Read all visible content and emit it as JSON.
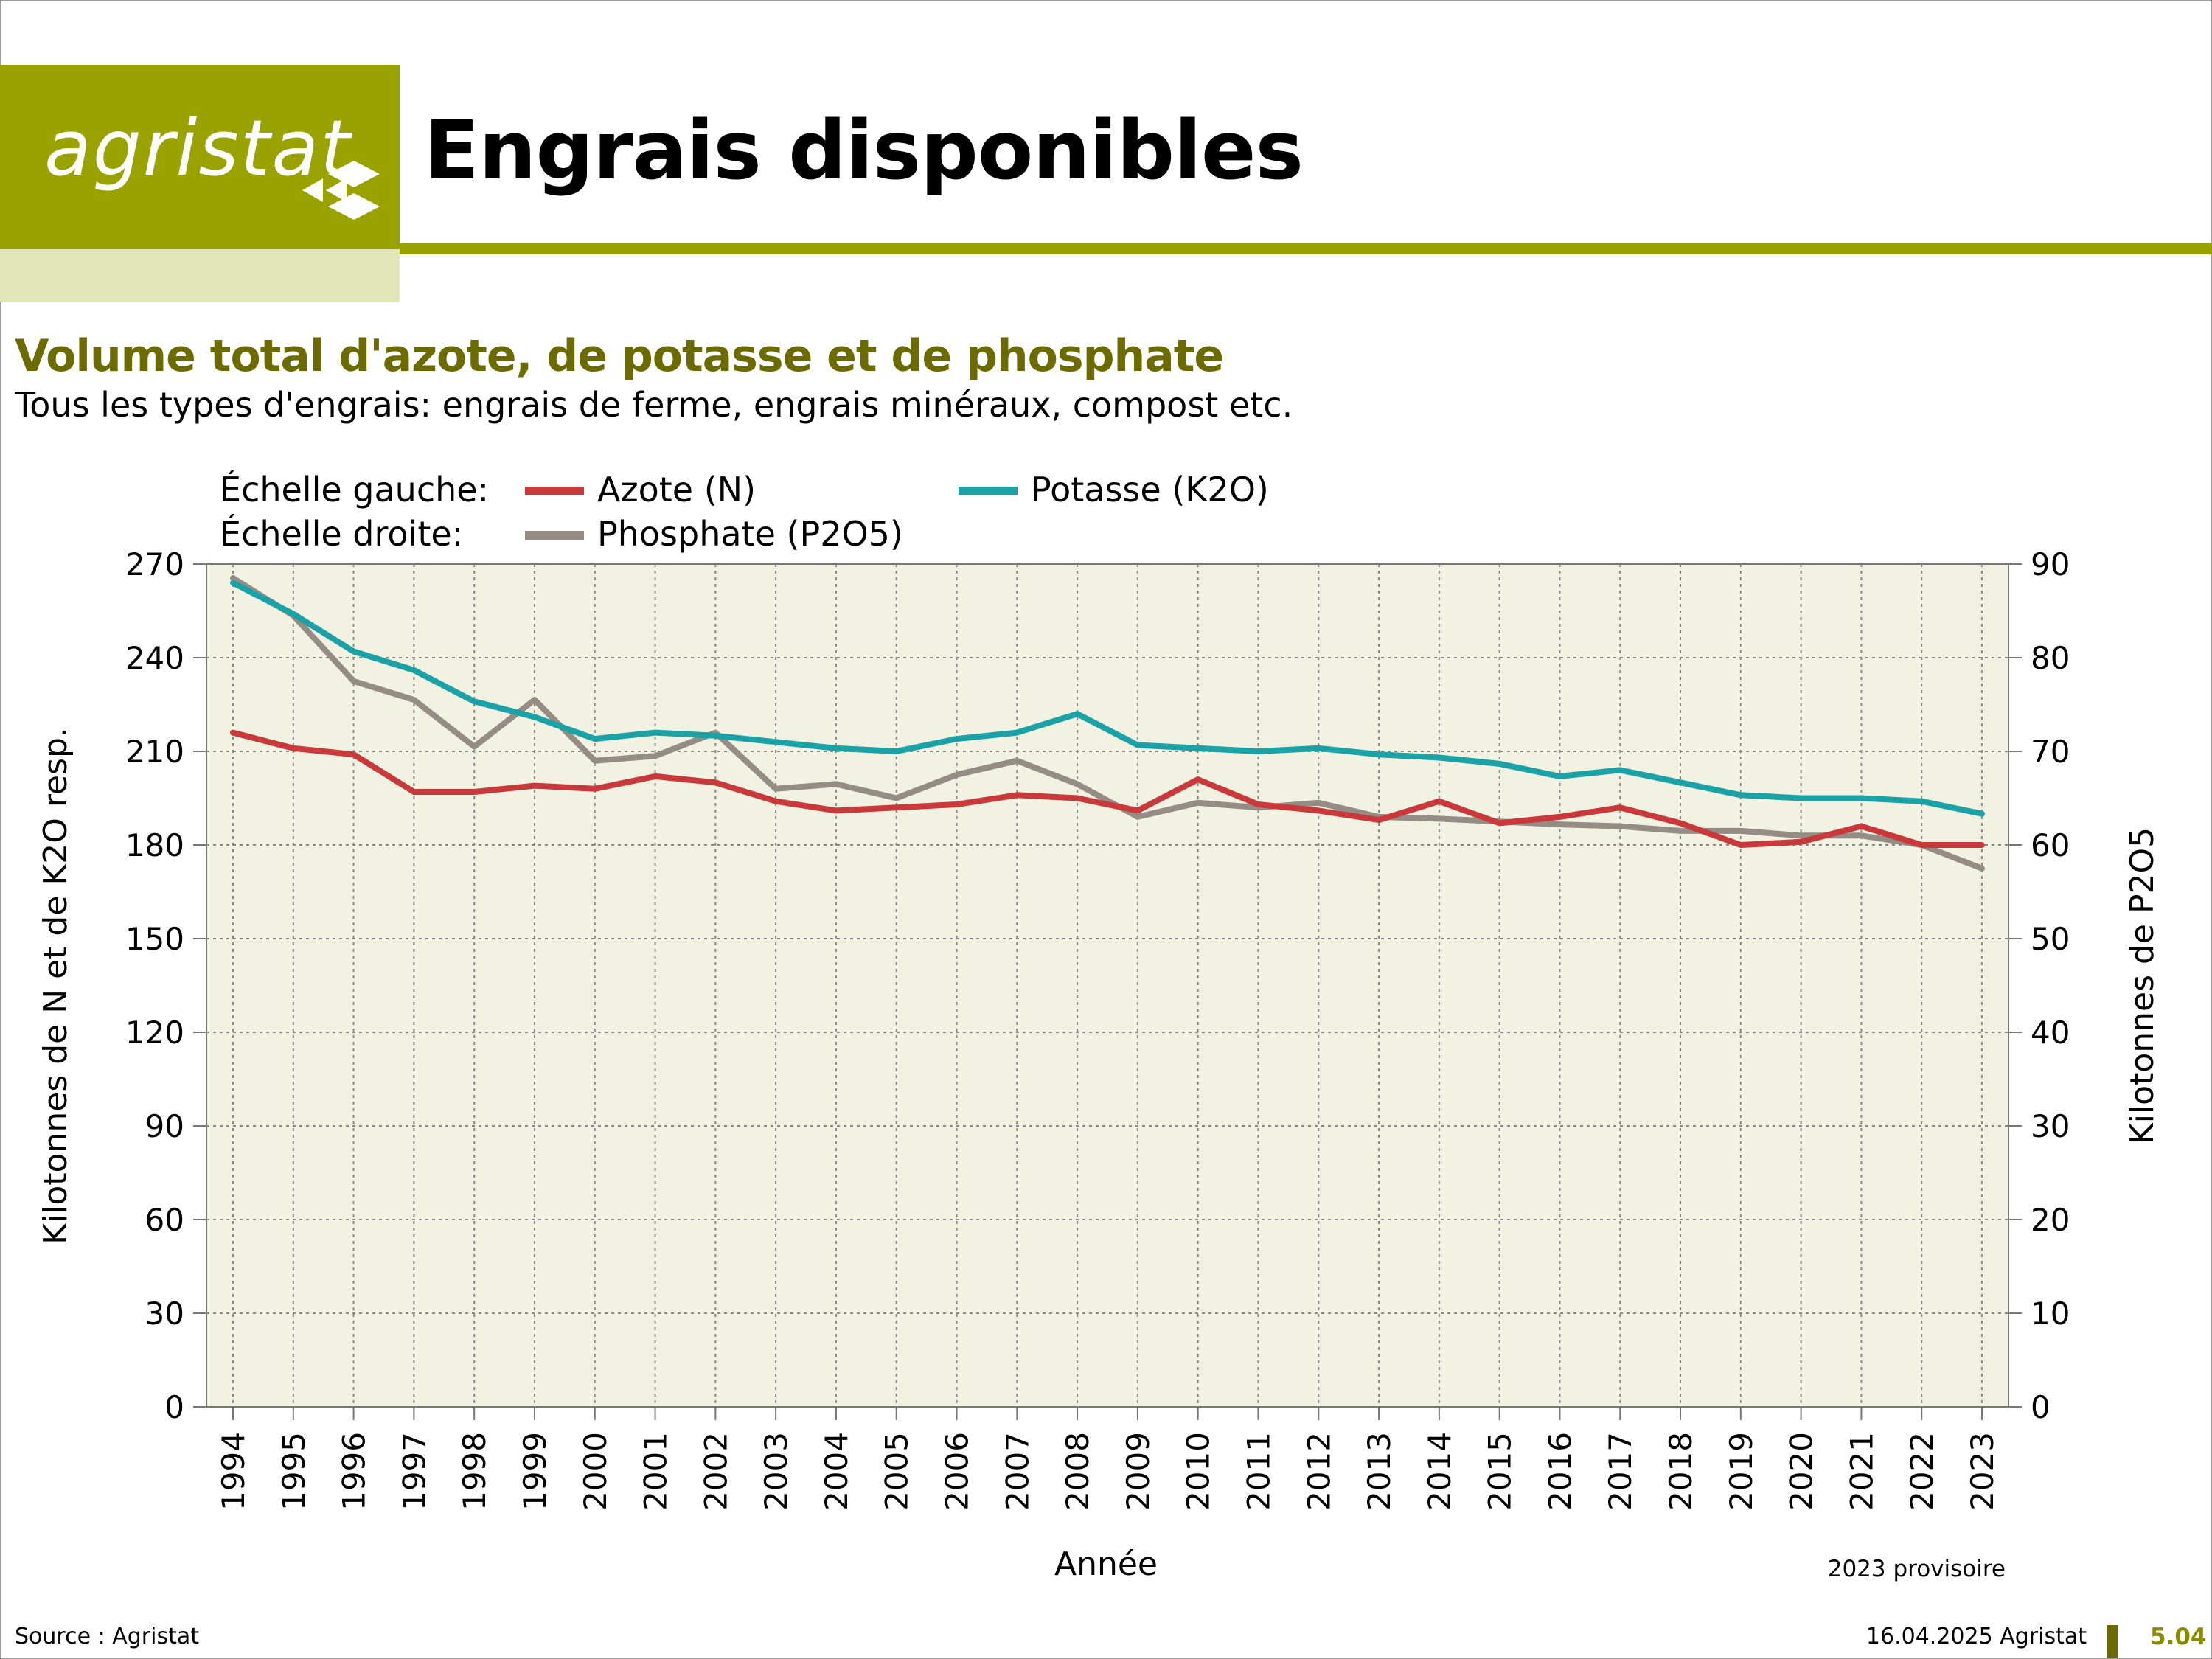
{
  "header": {
    "logo_text": "agristat",
    "title": "Engrais disponibles"
  },
  "chart_heading": {
    "title": "Volume total d'azote, de potasse et de phosphate",
    "description": "Tous les types d'engrais: engrais de ferme, engrais minéraux, compost etc."
  },
  "colors": {
    "brand": "#9aa200",
    "brand_light": "#e3e6b6",
    "subtitle": "#6b6b00",
    "plot_bg": "#f2f2e2",
    "azote": "#c9383a",
    "potasse": "#1aa2a6",
    "phosphate": "#958c86"
  },
  "chart_data": {
    "type": "line",
    "xlabel": "Année",
    "ylabel_left": "Kilotonnes de N et de K2O resp.",
    "ylabel_right": "Kilotonnes de P2O5",
    "ylim_left": [
      0,
      270
    ],
    "ylim_right": [
      0,
      90
    ],
    "yticks_left": [
      0,
      30,
      60,
      90,
      120,
      150,
      180,
      210,
      240,
      270
    ],
    "yticks_right": [
      0,
      10,
      20,
      30,
      40,
      50,
      60,
      70,
      80,
      90
    ],
    "grid": true,
    "legend_position": "top",
    "legend_scale_left": "Échelle gauche:",
    "legend_scale_right": "Échelle droite:",
    "note": "2023 provisoire",
    "x": [
      1994,
      1995,
      1996,
      1997,
      1998,
      1999,
      2000,
      2001,
      2002,
      2003,
      2004,
      2005,
      2006,
      2007,
      2008,
      2009,
      2010,
      2011,
      2012,
      2013,
      2014,
      2015,
      2016,
      2017,
      2018,
      2019,
      2020,
      2021,
      2022,
      2023
    ],
    "series": [
      {
        "name": "Azote (N)",
        "axis": "left",
        "values": [
          216,
          211,
          209,
          197,
          197,
          199,
          198,
          202,
          200,
          194,
          191,
          192,
          193,
          196,
          195,
          191,
          201,
          193,
          191,
          188,
          194,
          187,
          189,
          192,
          187,
          180,
          181,
          186,
          180,
          180
        ]
      },
      {
        "name": "Potasse (K2O)",
        "axis": "left",
        "values": [
          264,
          254,
          242,
          236,
          226,
          221,
          214,
          216,
          215,
          213,
          211,
          210,
          214,
          216,
          222,
          212,
          211,
          210,
          211,
          209,
          208,
          206,
          202,
          204,
          200,
          196,
          195,
          195,
          194,
          190
        ]
      },
      {
        "name": "Phosphate (P2O5)",
        "axis": "right",
        "values": [
          88.5,
          84.5,
          77.5,
          75.5,
          70.5,
          75.5,
          69,
          69.5,
          72,
          66,
          66.5,
          65,
          67.5,
          69,
          66.5,
          63,
          64.5,
          64,
          64.5,
          63,
          62.8,
          62.5,
          62.2,
          62,
          61.5,
          61.5,
          61,
          61,
          60,
          57.5
        ]
      }
    ]
  },
  "footer": {
    "source": "Source : Agristat",
    "date": "16.04.2025 Agristat",
    "page": "5.04"
  }
}
